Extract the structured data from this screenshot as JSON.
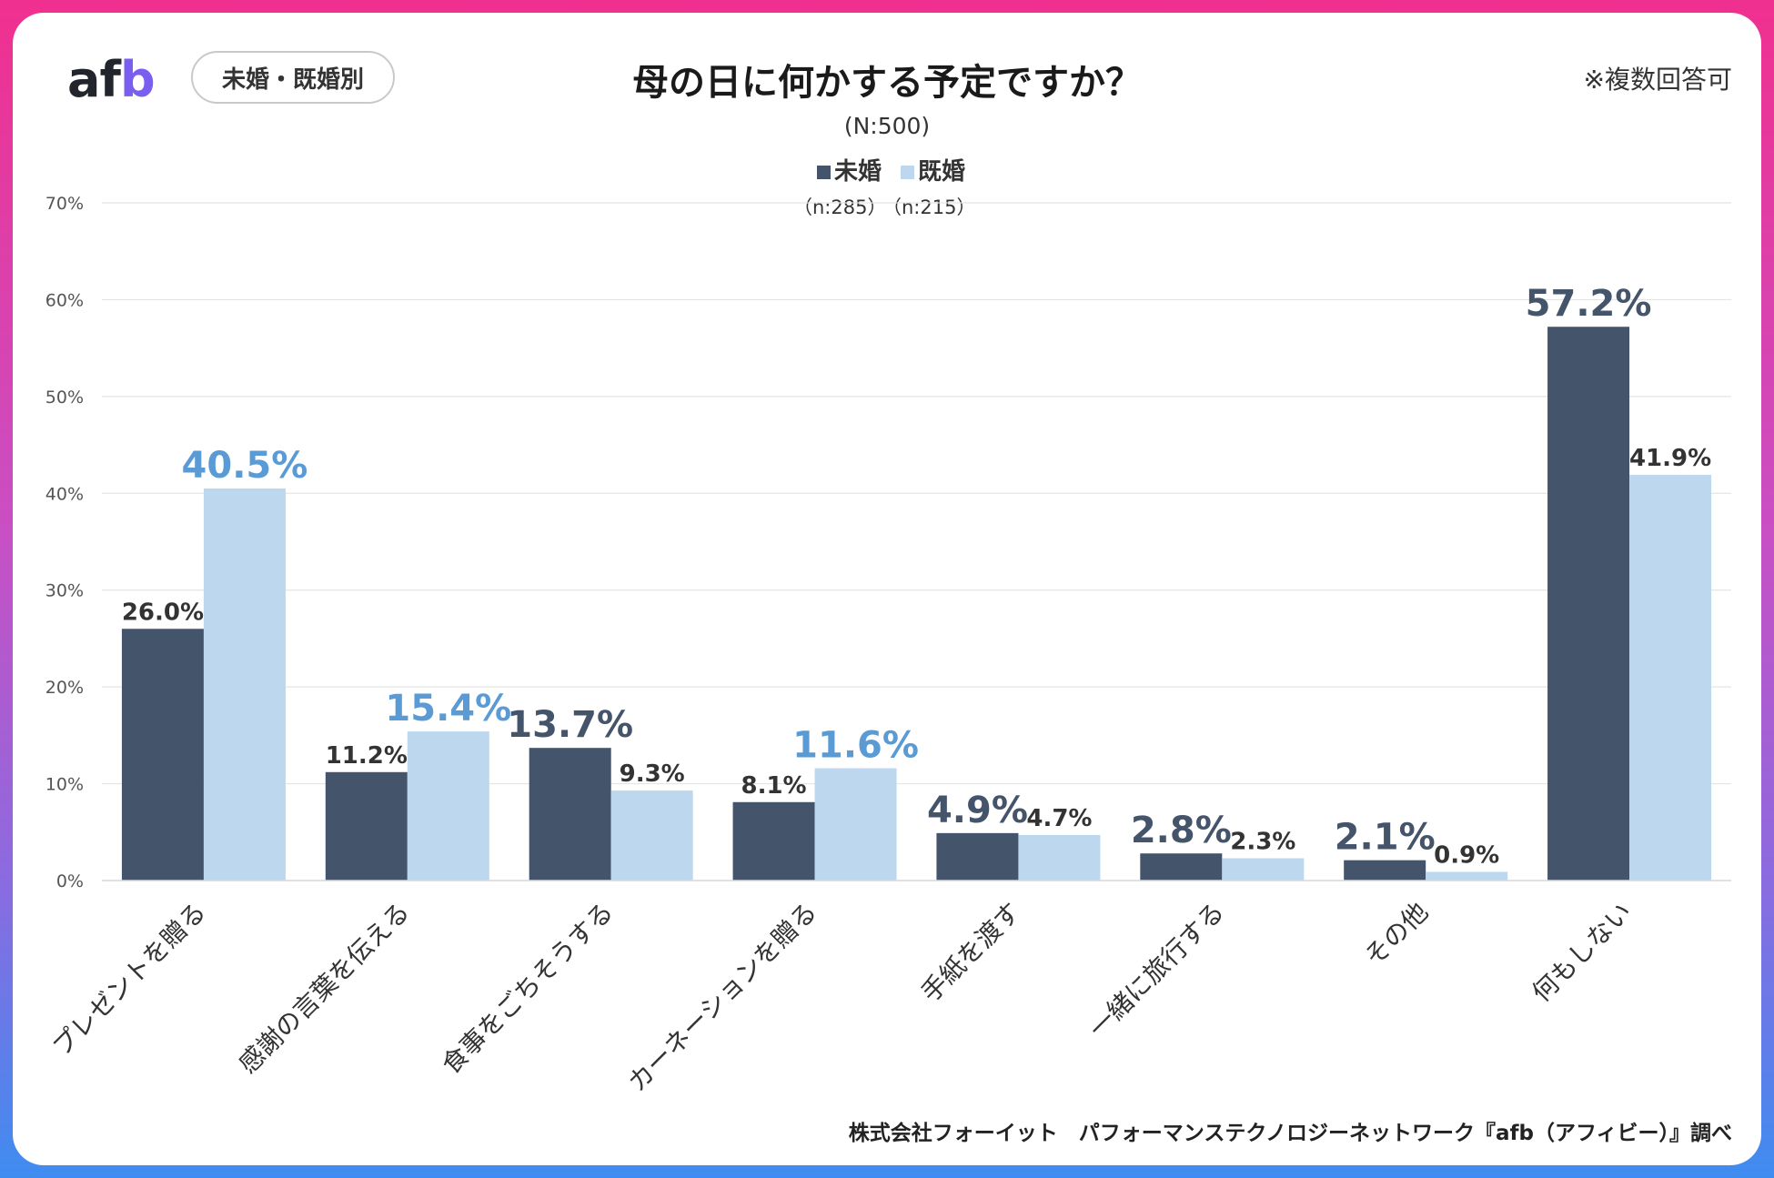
{
  "header": {
    "logo_text_1": "af",
    "logo_text_2": "b",
    "filter_badge": "未婚・既婚別",
    "note": "※複数回答可",
    "footer": "株式会社フォーイット　パフォーマンステクノロジーネットワーク『afb（アフィビー）』調べ"
  },
  "colors": {
    "unmarried": "#44546a",
    "married": "#bdd7ee",
    "highlight_married": "#5b9bd5",
    "text": "#333333",
    "grid": "#e4e4e4"
  },
  "chart_data": {
    "type": "bar",
    "title": "母の日に何かする予定ですか？",
    "subtitle": "(N:500)",
    "categories": [
      "プレゼントを贈る",
      "感謝の言葉を伝える",
      "食事をごちそうする",
      "カーネーションを贈る",
      "手紙を渡す",
      "一緒に旅行する",
      "その他",
      "何もしない"
    ],
    "series": [
      {
        "name": "未婚",
        "n_label": "（n:285）",
        "values": [
          26.0,
          11.2,
          13.7,
          8.1,
          4.9,
          2.8,
          2.1,
          57.2
        ],
        "labels": [
          "26.0%",
          "11.2%",
          "13.7%",
          "8.1%",
          "4.9%",
          "2.8%",
          "2.1%",
          "57.2%"
        ],
        "highlight": [
          false,
          false,
          true,
          false,
          true,
          true,
          true,
          true
        ]
      },
      {
        "name": "既婚",
        "n_label": "（n:215）",
        "values": [
          40.5,
          15.4,
          9.3,
          11.6,
          4.7,
          2.3,
          0.9,
          41.9
        ],
        "labels": [
          "40.5%",
          "15.4%",
          "9.3%",
          "11.6%",
          "4.7%",
          "2.3%",
          "0.9%",
          "41.9%"
        ],
        "highlight": [
          true,
          true,
          false,
          true,
          false,
          false,
          false,
          false
        ]
      }
    ],
    "y_ticks": [
      "0%",
      "10%",
      "20%",
      "30%",
      "40%",
      "50%",
      "60%",
      "70%"
    ],
    "ylim": [
      0,
      70
    ],
    "ylabel": "",
    "xlabel": "",
    "legend": "top-center",
    "grid": true
  }
}
